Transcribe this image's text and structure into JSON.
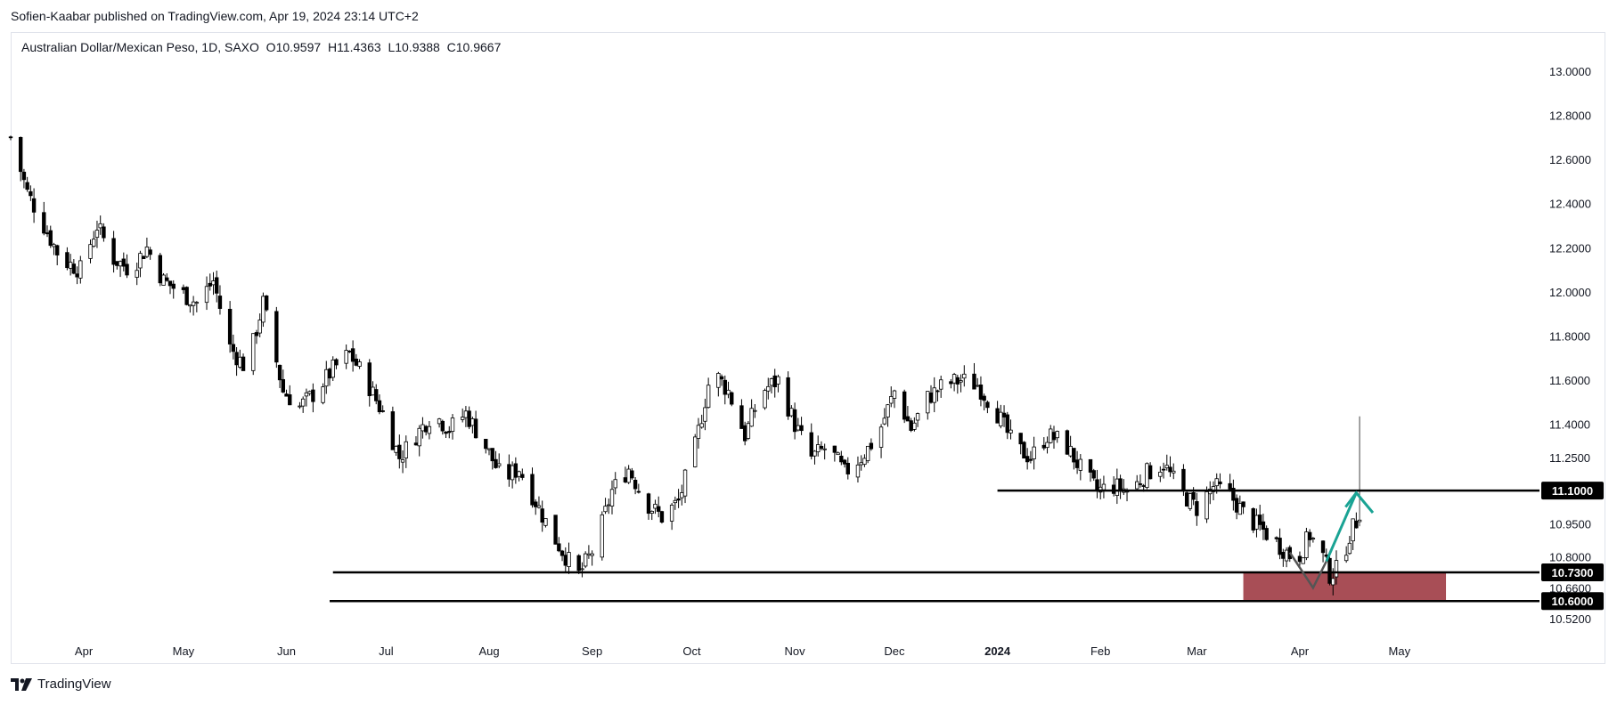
{
  "header": {
    "publish_line": "Sofien-Kaabar published on TradingView.com, Apr 19, 2024 23:14 UTC+2"
  },
  "legend": {
    "symbol": "Australian Dollar/Mexican Peso, 1D, SAXO",
    "open_label": "O",
    "open": "10.9597",
    "high_label": "H",
    "high": "11.4363",
    "low_label": "L",
    "low": "10.9388",
    "close_label": "C",
    "close": "10.9667"
  },
  "footer": {
    "logo_icon": "tradingview-logo-icon",
    "brand": "TradingView"
  },
  "colors": {
    "up": "#ffffff",
    "down": "#000000",
    "outline": "#000000",
    "zone": "#a84e56",
    "arrow_up": "#1aa394",
    "arrow_down": "#555555"
  },
  "chart_data": {
    "type": "candlestick",
    "title": "",
    "xlabel": "",
    "ylabel": "",
    "ylim": [
      10.48,
      13.12
    ],
    "y_ticks": [
      "13.0000",
      "12.8000",
      "12.6000",
      "12.4000",
      "12.2000",
      "12.0000",
      "11.8000",
      "11.6000",
      "11.4000",
      "11.2500",
      "10.9500",
      "10.8000",
      "10.6600",
      "10.5200"
    ],
    "x_labels": [
      {
        "label": "Apr",
        "date": "2023-04-01"
      },
      {
        "label": "May",
        "date": "2023-05-01"
      },
      {
        "label": "Jun",
        "date": "2023-06-01"
      },
      {
        "label": "Jul",
        "date": "2023-07-01"
      },
      {
        "label": "Aug",
        "date": "2023-08-01"
      },
      {
        "label": "Sep",
        "date": "2023-09-01"
      },
      {
        "label": "Oct",
        "date": "2023-10-01"
      },
      {
        "label": "Nov",
        "date": "2023-11-01"
      },
      {
        "label": "Dec",
        "date": "2023-12-01"
      },
      {
        "label": "2024",
        "date": "2024-01-01",
        "bold": true
      },
      {
        "label": "Feb",
        "date": "2024-02-01"
      },
      {
        "label": "Mar",
        "date": "2024-03-01"
      },
      {
        "label": "Apr",
        "date": "2024-04-01"
      },
      {
        "label": "May",
        "date": "2024-05-01"
      }
    ],
    "x_range": [
      "2023-03-10",
      "2024-06-10"
    ],
    "close_path": [
      [
        "2023-03-10",
        12.7
      ],
      [
        "2023-03-15",
        12.45
      ],
      [
        "2023-03-20",
        12.3
      ],
      [
        "2023-03-25",
        12.15
      ],
      [
        "2023-03-31",
        12.1
      ],
      [
        "2023-04-05",
        12.3
      ],
      [
        "2023-04-10",
        12.15
      ],
      [
        "2023-04-15",
        12.1
      ],
      [
        "2023-04-20",
        12.2
      ],
      [
        "2023-04-25",
        12.05
      ],
      [
        "2023-04-30",
        12.0
      ],
      [
        "2023-05-05",
        11.95
      ],
      [
        "2023-05-10",
        12.05
      ],
      [
        "2023-05-15",
        11.75
      ],
      [
        "2023-05-20",
        11.65
      ],
      [
        "2023-05-25",
        11.95
      ],
      [
        "2023-05-31",
        11.55
      ],
      [
        "2023-06-05",
        11.48
      ],
      [
        "2023-06-10",
        11.55
      ],
      [
        "2023-06-15",
        11.65
      ],
      [
        "2023-06-20",
        11.72
      ],
      [
        "2023-06-25",
        11.6
      ],
      [
        "2023-06-30",
        11.45
      ],
      [
        "2023-07-05",
        11.25
      ],
      [
        "2023-07-10",
        11.35
      ],
      [
        "2023-07-15",
        11.45
      ],
      [
        "2023-07-20",
        11.38
      ],
      [
        "2023-07-25",
        11.45
      ],
      [
        "2023-07-31",
        11.3
      ],
      [
        "2023-08-05",
        11.15
      ],
      [
        "2023-08-10",
        11.2
      ],
      [
        "2023-08-15",
        11.05
      ],
      [
        "2023-08-20",
        10.9
      ],
      [
        "2023-08-25",
        10.78
      ],
      [
        "2023-08-28",
        10.72
      ],
      [
        "2023-09-02",
        10.85
      ],
      [
        "2023-09-07",
        11.1
      ],
      [
        "2023-09-12",
        11.2
      ],
      [
        "2023-09-17",
        11.05
      ],
      [
        "2023-09-22",
        10.98
      ],
      [
        "2023-09-27",
        11.05
      ],
      [
        "2023-10-02",
        11.3
      ],
      [
        "2023-10-07",
        11.65
      ],
      [
        "2023-10-12",
        11.55
      ],
      [
        "2023-10-17",
        11.35
      ],
      [
        "2023-10-22",
        11.55
      ],
      [
        "2023-10-27",
        11.6
      ],
      [
        "2023-11-01",
        11.4
      ],
      [
        "2023-11-06",
        11.25
      ],
      [
        "2023-11-11",
        11.3
      ],
      [
        "2023-11-16",
        11.18
      ],
      [
        "2023-11-21",
        11.25
      ],
      [
        "2023-11-26",
        11.35
      ],
      [
        "2023-12-01",
        11.55
      ],
      [
        "2023-12-06",
        11.38
      ],
      [
        "2023-12-11",
        11.52
      ],
      [
        "2023-12-16",
        11.58
      ],
      [
        "2023-12-21",
        11.6
      ],
      [
        "2023-12-26",
        11.58
      ],
      [
        "2024-01-01",
        11.45
      ],
      [
        "2024-01-06",
        11.3
      ],
      [
        "2024-01-11",
        11.25
      ],
      [
        "2024-01-16",
        11.35
      ],
      [
        "2024-01-21",
        11.32
      ],
      [
        "2024-01-26",
        11.2
      ],
      [
        "2024-01-31",
        11.1
      ],
      [
        "2024-02-05",
        11.12
      ],
      [
        "2024-02-10",
        11.1
      ],
      [
        "2024-02-15",
        11.18
      ],
      [
        "2024-02-20",
        11.22
      ],
      [
        "2024-02-25",
        11.1
      ],
      [
        "2024-03-01",
        11.02
      ],
      [
        "2024-03-06",
        11.12
      ],
      [
        "2024-03-11",
        11.08
      ],
      [
        "2024-03-16",
        10.98
      ],
      [
        "2024-03-21",
        10.92
      ],
      [
        "2024-03-26",
        10.85
      ],
      [
        "2024-03-31",
        10.78
      ],
      [
        "2024-04-04",
        10.9
      ],
      [
        "2024-04-08",
        10.8
      ],
      [
        "2024-04-10",
        10.72
      ],
      [
        "2024-04-13",
        10.75
      ],
      [
        "2024-04-16",
        10.9
      ],
      [
        "2024-04-18",
        10.96
      ],
      [
        "2024-04-19",
        10.97
      ]
    ],
    "last_candle": {
      "date": "2024-04-19",
      "open": 10.9597,
      "high": 11.4363,
      "low": 10.9388,
      "close": 10.9667
    },
    "levels": [
      {
        "value": 11.1,
        "label": "11.1000",
        "from": "2024-01-01"
      },
      {
        "value": 10.73,
        "label": "10.7300",
        "from": "2023-06-15"
      },
      {
        "value": 10.6,
        "label": "10.6000",
        "from": "2023-06-14"
      }
    ],
    "zone": {
      "from": "2024-03-15",
      "to": "2024-05-15",
      "y_top": 10.73,
      "y_bottom": 10.6
    },
    "arrows": [
      {
        "type": "down-v",
        "points": [
          [
            "2024-03-29",
            10.82
          ],
          [
            "2024-04-05",
            10.66
          ],
          [
            "2024-04-09",
            10.78
          ]
        ]
      },
      {
        "type": "up",
        "points": [
          [
            "2024-04-09",
            10.78
          ],
          [
            "2024-04-18",
            11.09
          ]
        ],
        "head": [
          "2024-04-23",
          11.0
        ]
      }
    ]
  }
}
